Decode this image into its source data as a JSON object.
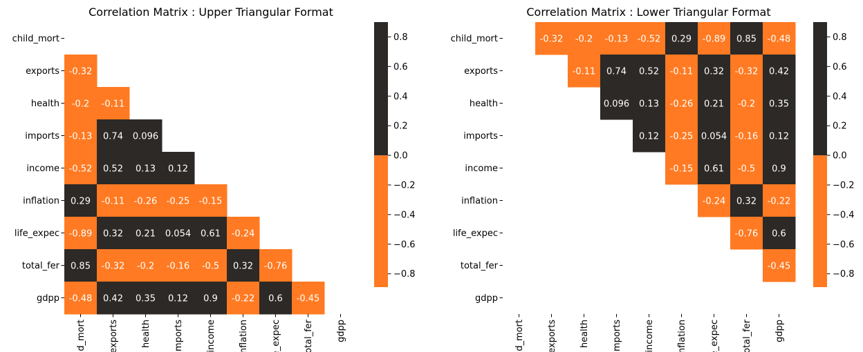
{
  "chart_data": [
    {
      "type": "heatmap",
      "title": "Correlation Matrix : Upper Triangular Format",
      "triangle": "lower",
      "rows": [
        "child_mort",
        "exports",
        "health",
        "imports",
        "income",
        "inflation",
        "life_expec",
        "total_fer",
        "gdpp"
      ],
      "cols": [
        "child_mort",
        "exports",
        "health",
        "imports",
        "income",
        "inflation",
        "life_expec",
        "total_fer",
        "gdpp"
      ],
      "cells": [
        {
          "row": 1,
          "col": 0,
          "value": -0.32,
          "label": "-0.32"
        },
        {
          "row": 2,
          "col": 0,
          "value": -0.2,
          "label": "-0.2"
        },
        {
          "row": 2,
          "col": 1,
          "value": -0.11,
          "label": "-0.11"
        },
        {
          "row": 3,
          "col": 0,
          "value": -0.13,
          "label": "-0.13"
        },
        {
          "row": 3,
          "col": 1,
          "value": 0.74,
          "label": "0.74"
        },
        {
          "row": 3,
          "col": 2,
          "value": 0.096,
          "label": "0.096"
        },
        {
          "row": 4,
          "col": 0,
          "value": -0.52,
          "label": "-0.52"
        },
        {
          "row": 4,
          "col": 1,
          "value": 0.52,
          "label": "0.52"
        },
        {
          "row": 4,
          "col": 2,
          "value": 0.13,
          "label": "0.13"
        },
        {
          "row": 4,
          "col": 3,
          "value": 0.12,
          "label": "0.12"
        },
        {
          "row": 5,
          "col": 0,
          "value": 0.29,
          "label": "0.29"
        },
        {
          "row": 5,
          "col": 1,
          "value": -0.11,
          "label": "-0.11"
        },
        {
          "row": 5,
          "col": 2,
          "value": -0.26,
          "label": "-0.26"
        },
        {
          "row": 5,
          "col": 3,
          "value": -0.25,
          "label": "-0.25"
        },
        {
          "row": 5,
          "col": 4,
          "value": -0.15,
          "label": "-0.15"
        },
        {
          "row": 6,
          "col": 0,
          "value": -0.89,
          "label": "-0.89"
        },
        {
          "row": 6,
          "col": 1,
          "value": 0.32,
          "label": "0.32"
        },
        {
          "row": 6,
          "col": 2,
          "value": 0.21,
          "label": "0.21"
        },
        {
          "row": 6,
          "col": 3,
          "value": 0.054,
          "label": "0.054"
        },
        {
          "row": 6,
          "col": 4,
          "value": 0.61,
          "label": "0.61"
        },
        {
          "row": 6,
          "col": 5,
          "value": -0.24,
          "label": "-0.24"
        },
        {
          "row": 7,
          "col": 0,
          "value": 0.85,
          "label": "0.85"
        },
        {
          "row": 7,
          "col": 1,
          "value": -0.32,
          "label": "-0.32"
        },
        {
          "row": 7,
          "col": 2,
          "value": -0.2,
          "label": "-0.2"
        },
        {
          "row": 7,
          "col": 3,
          "value": -0.16,
          "label": "-0.16"
        },
        {
          "row": 7,
          "col": 4,
          "value": -0.5,
          "label": "-0.5"
        },
        {
          "row": 7,
          "col": 5,
          "value": 0.32,
          "label": "0.32"
        },
        {
          "row": 7,
          "col": 6,
          "value": -0.76,
          "label": "-0.76"
        },
        {
          "row": 8,
          "col": 0,
          "value": -0.48,
          "label": "-0.48"
        },
        {
          "row": 8,
          "col": 1,
          "value": 0.42,
          "label": "0.42"
        },
        {
          "row": 8,
          "col": 2,
          "value": 0.35,
          "label": "0.35"
        },
        {
          "row": 8,
          "col": 3,
          "value": 0.12,
          "label": "0.12"
        },
        {
          "row": 8,
          "col": 4,
          "value": 0.9,
          "label": "0.9"
        },
        {
          "row": 8,
          "col": 5,
          "value": -0.22,
          "label": "-0.22"
        },
        {
          "row": 8,
          "col": 6,
          "value": 0.6,
          "label": "0.6"
        },
        {
          "row": 8,
          "col": 7,
          "value": -0.45,
          "label": "-0.45"
        }
      ],
      "colorbar": {
        "range": [
          -0.89,
          0.9
        ],
        "ticks": [
          0.8,
          0.6,
          0.4,
          0.2,
          0.0,
          -0.2,
          -0.4,
          -0.6,
          -0.8
        ],
        "tick_labels": [
          "0.8",
          "0.6",
          "0.4",
          "0.2",
          "0.0",
          "−0.2",
          "−0.4",
          "−0.6",
          "−0.8"
        ]
      },
      "colors": {
        "negative": "#FF7A22",
        "positive": "#2C2927",
        "label_on_negative": "#ffffff",
        "label_on_positive": "#ffffff"
      }
    },
    {
      "type": "heatmap",
      "title": "Correlation Matrix : Lower Triangular Format",
      "triangle": "upper",
      "rows": [
        "child_mort",
        "exports",
        "health",
        "imports",
        "income",
        "inflation",
        "life_expec",
        "total_fer",
        "gdpp"
      ],
      "cols": [
        "child_mort",
        "exports",
        "health",
        "imports",
        "income",
        "inflation",
        "life_expec",
        "total_fer",
        "gdpp"
      ],
      "cells": [
        {
          "row": 0,
          "col": 1,
          "value": -0.32,
          "label": "-0.32"
        },
        {
          "row": 0,
          "col": 2,
          "value": -0.2,
          "label": "-0.2"
        },
        {
          "row": 0,
          "col": 3,
          "value": -0.13,
          "label": "-0.13"
        },
        {
          "row": 0,
          "col": 4,
          "value": -0.52,
          "label": "-0.52"
        },
        {
          "row": 0,
          "col": 5,
          "value": 0.29,
          "label": "0.29"
        },
        {
          "row": 0,
          "col": 6,
          "value": -0.89,
          "label": "-0.89"
        },
        {
          "row": 0,
          "col": 7,
          "value": 0.85,
          "label": "0.85"
        },
        {
          "row": 0,
          "col": 8,
          "value": -0.48,
          "label": "-0.48"
        },
        {
          "row": 1,
          "col": 2,
          "value": -0.11,
          "label": "-0.11"
        },
        {
          "row": 1,
          "col": 3,
          "value": 0.74,
          "label": "0.74"
        },
        {
          "row": 1,
          "col": 4,
          "value": 0.52,
          "label": "0.52"
        },
        {
          "row": 1,
          "col": 5,
          "value": -0.11,
          "label": "-0.11"
        },
        {
          "row": 1,
          "col": 6,
          "value": 0.32,
          "label": "0.32"
        },
        {
          "row": 1,
          "col": 7,
          "value": -0.32,
          "label": "-0.32"
        },
        {
          "row": 1,
          "col": 8,
          "value": 0.42,
          "label": "0.42"
        },
        {
          "row": 2,
          "col": 3,
          "value": 0.096,
          "label": "0.096"
        },
        {
          "row": 2,
          "col": 4,
          "value": 0.13,
          "label": "0.13"
        },
        {
          "row": 2,
          "col": 5,
          "value": -0.26,
          "label": "-0.26"
        },
        {
          "row": 2,
          "col": 6,
          "value": 0.21,
          "label": "0.21"
        },
        {
          "row": 2,
          "col": 7,
          "value": -0.2,
          "label": "-0.2"
        },
        {
          "row": 2,
          "col": 8,
          "value": 0.35,
          "label": "0.35"
        },
        {
          "row": 3,
          "col": 4,
          "value": 0.12,
          "label": "0.12"
        },
        {
          "row": 3,
          "col": 5,
          "value": -0.25,
          "label": "-0.25"
        },
        {
          "row": 3,
          "col": 6,
          "value": 0.054,
          "label": "0.054"
        },
        {
          "row": 3,
          "col": 7,
          "value": -0.16,
          "label": "-0.16"
        },
        {
          "row": 3,
          "col": 8,
          "value": 0.12,
          "label": "0.12"
        },
        {
          "row": 4,
          "col": 5,
          "value": -0.15,
          "label": "-0.15"
        },
        {
          "row": 4,
          "col": 6,
          "value": 0.61,
          "label": "0.61"
        },
        {
          "row": 4,
          "col": 7,
          "value": -0.5,
          "label": "-0.5"
        },
        {
          "row": 4,
          "col": 8,
          "value": 0.9,
          "label": "0.9"
        },
        {
          "row": 5,
          "col": 6,
          "value": -0.24,
          "label": "-0.24"
        },
        {
          "row": 5,
          "col": 7,
          "value": 0.32,
          "label": "0.32"
        },
        {
          "row": 5,
          "col": 8,
          "value": -0.22,
          "label": "-0.22"
        },
        {
          "row": 6,
          "col": 7,
          "value": -0.76,
          "label": "-0.76"
        },
        {
          "row": 6,
          "col": 8,
          "value": 0.6,
          "label": "0.6"
        },
        {
          "row": 7,
          "col": 8,
          "value": -0.45,
          "label": "-0.45"
        }
      ],
      "colorbar": {
        "range": [
          -0.89,
          0.9
        ],
        "ticks": [
          0.8,
          0.6,
          0.4,
          0.2,
          0.0,
          -0.2,
          -0.4,
          -0.6,
          -0.8
        ],
        "tick_labels": [
          "0.8",
          "0.6",
          "0.4",
          "0.2",
          "0.0",
          "−0.2",
          "−0.4",
          "−0.6",
          "−0.8"
        ]
      },
      "colors": {
        "negative": "#FF7A22",
        "positive": "#2C2927",
        "label_on_negative": "#ffffff",
        "label_on_positive": "#ffffff"
      }
    }
  ]
}
